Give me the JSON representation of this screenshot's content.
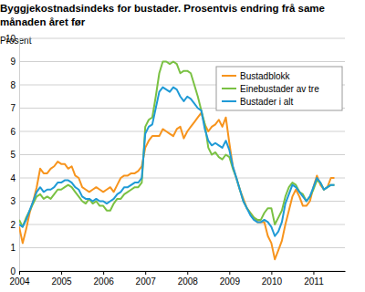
{
  "chart_data": {
    "type": "line",
    "title": "Byggjekostnadsindeks for bustader. Prosentvis endring frå same månaden året før",
    "y_label": "Prosent",
    "x": [
      2004,
      2004.083,
      2004.167,
      2004.25,
      2004.333,
      2004.417,
      2004.5,
      2004.583,
      2004.667,
      2004.75,
      2004.833,
      2004.917,
      2005,
      2005.083,
      2005.167,
      2005.25,
      2005.333,
      2005.417,
      2005.5,
      2005.583,
      2005.667,
      2005.75,
      2005.833,
      2005.917,
      2006,
      2006.083,
      2006.167,
      2006.25,
      2006.333,
      2006.417,
      2006.5,
      2006.583,
      2006.667,
      2006.75,
      2006.833,
      2006.917,
      2007,
      2007.083,
      2007.167,
      2007.25,
      2007.333,
      2007.417,
      2007.5,
      2007.583,
      2007.667,
      2007.75,
      2007.833,
      2007.917,
      2008,
      2008.083,
      2008.167,
      2008.25,
      2008.333,
      2008.417,
      2008.5,
      2008.583,
      2008.667,
      2008.75,
      2008.833,
      2008.917,
      2009,
      2009.083,
      2009.167,
      2009.25,
      2009.333,
      2009.417,
      2009.5,
      2009.583,
      2009.667,
      2009.75,
      2009.833,
      2009.917,
      2010,
      2010.083,
      2010.167,
      2010.25,
      2010.333,
      2010.417,
      2010.5,
      2010.583,
      2010.667,
      2010.75,
      2010.833,
      2010.917,
      2011,
      2011.083,
      2011.167,
      2011.25,
      2011.333,
      2011.417,
      2011.5
    ],
    "series": [
      {
        "name": "Bustadblokk",
        "color": "#f7941d",
        "values": [
          1.9,
          1.2,
          1.8,
          2.5,
          3.0,
          3.6,
          4.4,
          4.2,
          4.2,
          4.4,
          4.5,
          4.7,
          4.6,
          4.6,
          4.4,
          4.5,
          4.1,
          4.0,
          3.6,
          3.5,
          3.4,
          3.5,
          3.6,
          3.5,
          3.4,
          3.5,
          3.6,
          3.4,
          3.7,
          4.0,
          4.1,
          4.1,
          4.2,
          4.2,
          4.3,
          4.5,
          5.3,
          5.6,
          5.8,
          5.8,
          5.8,
          6.1,
          6.0,
          5.9,
          5.8,
          6.1,
          6.2,
          5.7,
          6.0,
          6.2,
          6.4,
          6.6,
          6.8,
          6.3,
          6.0,
          6.2,
          6.3,
          6.5,
          6.2,
          6.6,
          5.5,
          4.5,
          4.0,
          3.5,
          3.1,
          2.7,
          2.5,
          2.3,
          2.1,
          2.1,
          2.1,
          1.5,
          1.2,
          0.5,
          0.9,
          1.3,
          2.0,
          2.6,
          3.2,
          3.5,
          3.2,
          2.8,
          2.8,
          3.0,
          3.6,
          4.1,
          3.7,
          3.5,
          3.6,
          4.0,
          4.0
        ]
      },
      {
        "name": "Einebustader av tre",
        "color": "#7ac143",
        "values": [
          2.2,
          1.9,
          2.3,
          2.6,
          2.9,
          3.2,
          3.3,
          3.1,
          3.2,
          3.1,
          3.3,
          3.5,
          3.5,
          3.6,
          3.7,
          3.6,
          3.4,
          3.2,
          3.0,
          2.9,
          3.1,
          2.9,
          3.0,
          2.8,
          2.8,
          2.6,
          2.6,
          2.9,
          3.1,
          3.1,
          3.3,
          3.4,
          3.5,
          3.6,
          3.6,
          3.8,
          6.2,
          6.5,
          6.6,
          7.5,
          8.5,
          9.0,
          9.0,
          8.9,
          9.0,
          8.9,
          8.5,
          8.6,
          8.6,
          8.5,
          8.0,
          7.5,
          6.9,
          6.3,
          5.3,
          5.0,
          5.1,
          4.9,
          4.8,
          5.0,
          4.9,
          4.4,
          4.0,
          3.5,
          3.0,
          2.7,
          2.5,
          2.3,
          2.2,
          2.2,
          2.5,
          2.7,
          2.7,
          2.0,
          2.3,
          2.6,
          3.2,
          3.6,
          3.8,
          3.7,
          3.4,
          3.3,
          3.0,
          3.2,
          3.5,
          3.9,
          3.8,
          3.5,
          3.6,
          3.7,
          3.7
        ]
      },
      {
        "name": "Bustader i alt",
        "color": "#1f9ad6",
        "values": [
          2.0,
          1.9,
          2.2,
          2.6,
          3.0,
          3.4,
          3.6,
          3.4,
          3.5,
          3.5,
          3.6,
          3.8,
          3.8,
          3.9,
          3.9,
          3.8,
          3.6,
          3.5,
          3.2,
          3.1,
          3.1,
          3.0,
          3.1,
          3.0,
          3.0,
          2.9,
          3.0,
          3.1,
          3.3,
          3.4,
          3.6,
          3.6,
          3.7,
          3.8,
          3.8,
          4.0,
          5.9,
          6.2,
          6.3,
          7.0,
          7.7,
          7.9,
          7.8,
          7.7,
          7.9,
          7.8,
          7.5,
          7.3,
          7.5,
          7.4,
          7.2,
          7.0,
          6.9,
          6.1,
          5.6,
          5.4,
          5.5,
          5.4,
          5.3,
          5.6,
          5.2,
          4.5,
          4.0,
          3.5,
          3.0,
          2.7,
          2.4,
          2.2,
          2.1,
          2.1,
          2.2,
          2.1,
          1.9,
          1.5,
          1.7,
          2.1,
          2.9,
          3.3,
          3.7,
          3.6,
          3.4,
          3.2,
          3.0,
          3.2,
          3.6,
          4.0,
          3.8,
          3.5,
          3.6,
          3.7,
          3.7
        ]
      }
    ],
    "xlim": [
      2004,
      2011.75
    ],
    "xticks": [
      2004,
      2005,
      2006,
      2007,
      2008,
      2009,
      2010,
      2011
    ],
    "ylim": [
      0,
      10
    ],
    "yticks": [
      0,
      1,
      2,
      3,
      4,
      5,
      6,
      7,
      8,
      9,
      10
    ],
    "grid": true,
    "legend": "upper right"
  }
}
